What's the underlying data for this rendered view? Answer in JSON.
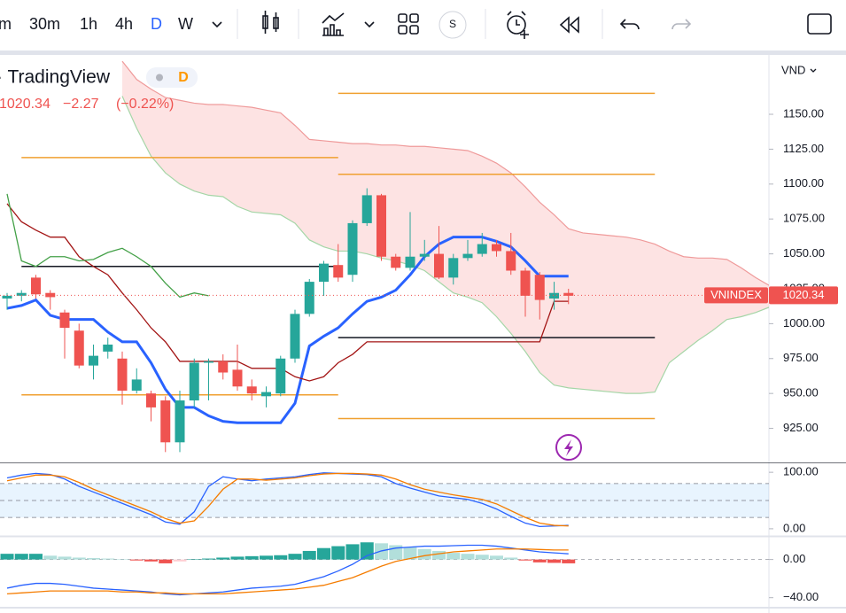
{
  "toolbar": {
    "intervals": [
      "m",
      "30m",
      "1h",
      "4h",
      "D",
      "W"
    ],
    "active": 4,
    "symbol_button": "S"
  },
  "legend": {
    "name": "· TradingView",
    "interval": "D",
    "price": "1020.34",
    "change": "−2.27",
    "change_pct": "(−0.22%)"
  },
  "chart_data": [
    {
      "type": "candlestick",
      "currency": "VND",
      "ylim": [
        900.6,
        1193.8
      ],
      "yticks": [
        {
          "value": 925,
          "label": "925.00"
        },
        {
          "value": 950,
          "label": "950.00"
        },
        {
          "value": 975,
          "label": "975.00"
        },
        {
          "value": 1000,
          "label": "1000.00"
        },
        {
          "value": 1025,
          "label": "1025.00"
        },
        {
          "value": 1050,
          "label": "1050.00"
        },
        {
          "value": 1075,
          "label": "1075.00"
        },
        {
          "value": 1100,
          "label": "1100.00"
        },
        {
          "value": 1125,
          "label": "1125.00"
        },
        {
          "value": 1150,
          "label": "1150.00"
        }
      ],
      "up_color": "#26a69a",
      "down_color": "#ef5350",
      "open": [
        1018,
        1020,
        1033,
        1022,
        1008,
        995,
        970,
        980,
        975,
        952,
        950,
        945,
        915,
        945,
        972,
        973,
        967,
        955,
        948,
        950,
        975,
        1007,
        1030,
        1042,
        1035,
        1072,
        1092,
        1048,
        1040,
        1048,
        1050,
        1033,
        1047,
        1050,
        1057,
        1052,
        1038,
        1035,
        1018,
        1022
      ],
      "high": [
        1022,
        1024,
        1035,
        1024,
        1010,
        1000,
        985,
        990,
        980,
        968,
        952,
        948,
        952,
        975,
        975,
        978,
        985,
        960,
        955,
        977,
        1010,
        1032,
        1045,
        1057,
        1074,
        1097,
        1093,
        1050,
        1080,
        1060,
        1070,
        1050,
        1060,
        1065,
        1060,
        1065,
        1040,
        1037,
        1030,
        1025
      ],
      "low": [
        1010,
        1016,
        1018,
        1010,
        975,
        968,
        960,
        975,
        942,
        950,
        930,
        908,
        908,
        940,
        945,
        960,
        952,
        945,
        940,
        948,
        972,
        1005,
        1020,
        1030,
        1030,
        1070,
        1045,
        1038,
        1038,
        1045,
        1032,
        1028,
        1045,
        1048,
        1048,
        1035,
        1005,
        1003,
        1010,
        1014
      ],
      "close": [
        1020,
        1022,
        1021,
        1019,
        997,
        970,
        977,
        985,
        952,
        960,
        940,
        915,
        945,
        972,
        973,
        965,
        955,
        950,
        951,
        975,
        1007,
        1030,
        1043,
        1033,
        1072,
        1092,
        1048,
        1040,
        1048,
        1050,
        1033,
        1047,
        1050,
        1057,
        1052,
        1038,
        1020,
        1017,
        1022,
        1020
      ],
      "last_price": {
        "symbol": "VNINDEX",
        "value": 1020.34
      },
      "cloud": {
        "fill": "#fcdcdc",
        "span_a": {
          "color": "#ef9a9a",
          "values": [
            null,
            null,
            null,
            null,
            null,
            null,
            null,
            null,
            1188,
            1175,
            1168,
            1162,
            1160,
            1158,
            1157,
            1157,
            1156,
            1155,
            1153,
            1151,
            1142,
            1132,
            1131,
            1130,
            1129,
            1129,
            1128,
            1128,
            1127,
            1127,
            1126,
            1125,
            1124,
            1120,
            1115,
            1108,
            1098,
            1087,
            1078,
            1068,
            1065,
            1064,
            1063,
            1062,
            1060,
            1057,
            1052,
            1048,
            1047,
            1047,
            1046,
            1040,
            1033,
            1027
          ]
        },
        "span_b": {
          "color": "#a5d6a7",
          "values": [
            null,
            null,
            null,
            null,
            null,
            null,
            null,
            null,
            1163,
            1140,
            1120,
            1108,
            1100,
            1095,
            1092,
            1091,
            1084,
            1080,
            1079,
            1078,
            1072,
            1060,
            1055,
            1052,
            1052,
            1050,
            1047,
            1045,
            1042,
            1038,
            1030,
            1022,
            1019,
            1015,
            1005,
            993,
            980,
            965,
            956,
            954,
            953,
            952,
            951,
            950,
            950,
            951,
            972,
            980,
            988,
            995,
            1003,
            1005,
            1008,
            1012
          ]
        }
      },
      "lines": [
        {
          "color": "#2962ff",
          "width": 3,
          "values": [
            1011,
            1013,
            1017,
            1006,
            1003,
            1003,
            1003,
            994,
            987,
            987,
            972,
            953,
            940,
            940,
            934,
            930,
            929,
            929,
            929,
            929,
            943,
            984,
            991,
            997,
            1007,
            1016,
            1019,
            1024,
            1035,
            1048,
            1057,
            1062,
            1062,
            1062,
            1059,
            1055,
            1045,
            1034,
            1034,
            1034
          ]
        },
        {
          "color": "#a31515",
          "width": 1.3,
          "values": [
            1086,
            1073,
            1067,
            1062,
            1062,
            1048,
            1041,
            1035,
            1022,
            1010,
            997,
            987,
            973,
            973,
            973,
            973,
            973,
            968,
            968,
            968,
            962,
            959,
            962,
            972,
            978,
            987,
            987,
            987,
            987,
            987,
            987,
            987,
            987,
            987,
            987,
            987,
            987,
            987,
            1016,
            1016
          ]
        },
        {
          "color": "#43a047",
          "width": 1.3,
          "values": [
            1093,
            1045,
            1041,
            1048,
            1048,
            1045,
            1046,
            1051,
            1054,
            1048,
            1041,
            1029,
            1019,
            1022,
            1020
          ]
        }
      ],
      "levels": [
        {
          "value": 1165,
          "from": 23,
          "to": 45,
          "color": "#f0a030"
        },
        {
          "value": 1107,
          "from": 23,
          "to": 45,
          "color": "#f0a030"
        },
        {
          "value": 1119,
          "from": 1,
          "to": 23,
          "color": "#f0a030"
        },
        {
          "value": 949,
          "from": 1,
          "to": 23,
          "color": "#f0a030"
        },
        {
          "value": 932,
          "from": 23,
          "to": 45,
          "color": "#f0a030"
        },
        {
          "value": 1041,
          "from": 1,
          "to": 23,
          "color": "#131722"
        },
        {
          "value": 990,
          "from": 23,
          "to": 45,
          "color": "#131722"
        }
      ]
    },
    {
      "type": "line",
      "ylim": [
        -12.7,
        115.9
      ],
      "yticks": [
        {
          "value": 0,
          "label": "0.00"
        },
        {
          "value": 100,
          "label": "100.00"
        }
      ],
      "band": [
        20,
        80
      ],
      "hlines": [
        80,
        50,
        20
      ],
      "series": [
        {
          "color": "#2962ff",
          "values": [
            90,
            95,
            98,
            96,
            88,
            75,
            65,
            55,
            45,
            35,
            25,
            12,
            8,
            30,
            75,
            92,
            88,
            85,
            88,
            90,
            92,
            96,
            99,
            98,
            97,
            96,
            92,
            80,
            72,
            65,
            58,
            55,
            52,
            45,
            35,
            22,
            10,
            4,
            5,
            6
          ]
        },
        {
          "color": "#f57c00",
          "values": [
            85,
            90,
            95,
            95,
            92,
            82,
            70,
            60,
            50,
            40,
            30,
            18,
            10,
            14,
            40,
            70,
            88,
            88,
            86,
            88,
            90,
            94,
            97,
            98,
            98,
            97,
            95,
            88,
            78,
            70,
            65,
            60,
            56,
            52,
            44,
            32,
            20,
            10,
            6,
            5
          ]
        }
      ]
    },
    {
      "type": "macd",
      "ylim": [
        -50.5,
        23.8
      ],
      "yticks": [
        {
          "value": -40,
          "label": "−40.00"
        },
        {
          "value": 0,
          "label": "0.00"
        }
      ],
      "histogram": [
        6,
        6,
        6,
        4,
        3,
        2,
        1.5,
        1,
        0.5,
        -1,
        -2,
        -4,
        -2,
        0.5,
        1,
        2,
        3,
        3.5,
        4,
        4.5,
        6,
        9,
        12,
        14,
        16,
        18,
        17,
        15,
        13,
        11,
        9,
        7,
        6,
        5,
        4,
        2,
        -1,
        -3,
        -3.5,
        -4
      ],
      "colors": {
        "up_rise": "#26a69a",
        "up_fall": "#b2dfdb",
        "down_fall": "#ef5350",
        "down_rise": "#ffcdd2"
      },
      "series": [
        {
          "color": "#2962ff",
          "values": [
            -30,
            -27,
            -25,
            -25,
            -26,
            -28,
            -30,
            -31,
            -32,
            -33,
            -34,
            -36,
            -37,
            -36,
            -35,
            -34,
            -32,
            -30,
            -29,
            -28,
            -26,
            -22,
            -18,
            -12,
            -5,
            4,
            9,
            12,
            13,
            14,
            14,
            14.5,
            15,
            15,
            14,
            12,
            10,
            8,
            7,
            6
          ]
        },
        {
          "color": "#f57c00",
          "values": [
            -36,
            -35,
            -34,
            -33,
            -33,
            -33,
            -33,
            -33,
            -34,
            -34,
            -35,
            -35,
            -36,
            -36,
            -36,
            -36,
            -35,
            -34,
            -33,
            -32,
            -31,
            -29,
            -27,
            -23,
            -19,
            -13,
            -7,
            -2,
            1,
            4,
            6,
            8,
            9,
            10,
            11,
            11,
            11,
            10.5,
            10,
            10
          ]
        }
      ]
    }
  ]
}
